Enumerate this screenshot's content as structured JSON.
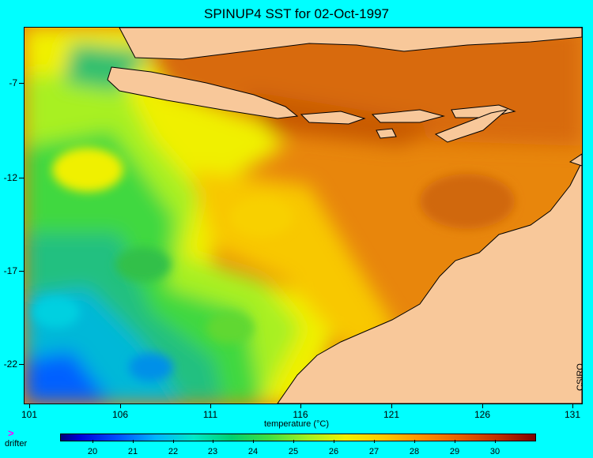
{
  "title": "SPINUP4 SST for 02-Oct-1997",
  "credit": "CSIRO",
  "y_axis": {
    "labels": [
      "-7",
      "-12",
      "-17",
      "-22"
    ]
  },
  "x_axis": {
    "labels": [
      "101",
      "106",
      "111",
      "116",
      "121",
      "126",
      "131"
    ]
  },
  "colorbar": {
    "title": "temperature (°C)",
    "labels": [
      "20",
      "21",
      "22",
      "23",
      "24",
      "25",
      "26",
      "27",
      "28",
      "29",
      "30"
    ]
  },
  "legend": {
    "glyph": ">",
    "label": "drifter"
  },
  "colors": {
    "background": "#00ffff",
    "land": "#f8c89a",
    "warm": "#e87a10",
    "cool": "#30c060"
  }
}
